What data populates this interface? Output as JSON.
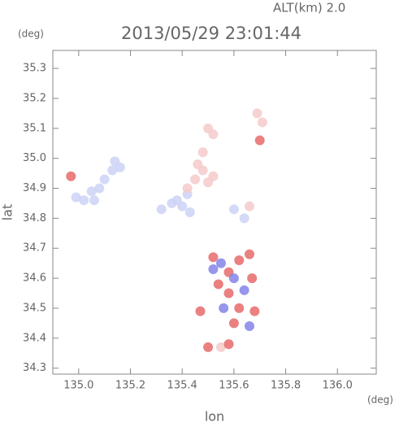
{
  "chart_data": {
    "type": "scatter",
    "title": "2013/05/29 23:01:44",
    "annotation": "ALT(km) 2.0",
    "x_unit": "(deg)",
    "y_unit": "(deg)",
    "x_label": "lon",
    "y_label": "lat",
    "xlim": [
      134.9,
      136.15
    ],
    "ylim": [
      34.28,
      35.36
    ],
    "xticks": [
      {
        "value": 135,
        "label": "135.0"
      },
      135.2,
      135.4,
      135.6,
      135.8,
      {
        "value": 136,
        "label": "136.0"
      }
    ],
    "yticks": [
      34.3,
      34.4,
      34.5,
      34.6,
      34.7,
      34.8,
      34.9,
      {
        "value": 35,
        "label": "35.0"
      },
      35.1,
      35.2,
      35.3
    ],
    "series": [
      {
        "color": "#cdd2f6",
        "x": [
          134.99,
          135.02,
          135.05,
          135.08,
          135.1,
          135.13,
          135.14,
          135.16,
          135.06,
          135.32,
          135.36,
          135.4,
          135.43,
          135.42,
          135.38,
          135.6,
          135.64
        ],
        "y": [
          34.87,
          34.86,
          34.89,
          34.9,
          34.93,
          34.96,
          34.99,
          34.97,
          34.86,
          34.83,
          34.85,
          34.84,
          34.82,
          34.88,
          34.86,
          34.83,
          34.8
        ]
      },
      {
        "color": "#f5caca",
        "x": [
          135.42,
          135.45,
          135.48,
          135.5,
          135.52,
          135.46,
          135.5,
          135.52,
          135.48,
          135.69,
          135.71,
          135.66,
          135.55
        ],
        "y": [
          34.9,
          34.93,
          34.96,
          34.92,
          34.94,
          34.98,
          35.1,
          35.08,
          35.02,
          35.15,
          35.12,
          34.84,
          34.37
        ]
      },
      {
        "color": "#e86a6a",
        "x": [
          134.97,
          135.7,
          135.52,
          135.58,
          135.62,
          135.66,
          135.54,
          135.58,
          135.67,
          135.62,
          135.68,
          135.6,
          135.47,
          135.5,
          135.58
        ],
        "y": [
          34.94,
          35.06,
          34.67,
          34.62,
          34.66,
          34.68,
          34.58,
          34.55,
          34.6,
          34.5,
          34.49,
          34.45,
          34.49,
          34.37,
          34.38
        ]
      },
      {
        "color": "#8484ea",
        "x": [
          135.55,
          135.6,
          135.64,
          135.56,
          135.66,
          135.52
        ],
        "y": [
          34.65,
          34.6,
          34.56,
          34.5,
          34.44,
          34.63
        ]
      }
    ]
  }
}
